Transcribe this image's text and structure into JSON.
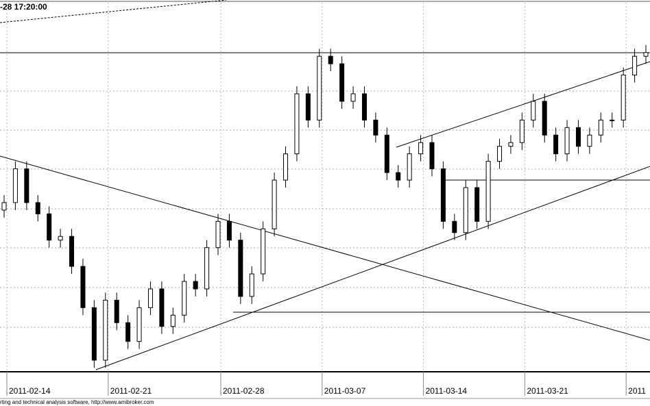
{
  "chart_data": {
    "type": "candlestick",
    "title": "-28 17:20:00",
    "footer": "rting and technical analysis software, http://www.amibroker.com",
    "open": [
      44,
      46,
      55,
      46,
      43,
      36,
      37,
      29,
      18,
      4,
      20,
      14,
      9,
      18,
      23,
      13,
      16,
      25,
      23,
      34,
      41,
      36,
      21,
      27,
      39,
      52,
      59,
      75,
      68,
      85,
      83,
      73,
      75,
      68,
      64,
      54,
      52,
      59,
      62,
      55,
      41,
      38,
      50,
      41,
      57,
      61,
      62,
      68,
      73,
      64,
      59,
      66,
      61,
      64,
      68,
      68,
      80,
      85
    ],
    "high": [
      48,
      57,
      57,
      48,
      45,
      39,
      39,
      31,
      20,
      22,
      22,
      16,
      20,
      25,
      25,
      18,
      27,
      27,
      36,
      43,
      43,
      38,
      29,
      41,
      54,
      61,
      77,
      77,
      87,
      87,
      85,
      77,
      77,
      70,
      66,
      56,
      61,
      64,
      64,
      57,
      43,
      52,
      52,
      59,
      63,
      64,
      70,
      75,
      75,
      66,
      68,
      68,
      66,
      70,
      70,
      82,
      87,
      88
    ],
    "low": [
      42,
      44,
      44,
      41,
      34,
      34,
      27,
      16,
      2,
      2,
      12,
      7,
      7,
      16,
      11,
      11,
      14,
      21,
      21,
      32,
      34,
      19,
      19,
      25,
      37,
      50,
      57,
      66,
      66,
      81,
      71,
      71,
      66,
      62,
      52,
      50,
      50,
      57,
      53,
      39,
      36,
      36,
      39,
      39,
      55,
      59,
      60,
      66,
      62,
      57,
      57,
      59,
      59,
      62,
      66,
      66,
      78,
      83
    ],
    "close": [
      46,
      55,
      46,
      43,
      36,
      37,
      29,
      18,
      4,
      20,
      14,
      9,
      18,
      23,
      13,
      16,
      25,
      23,
      34,
      41,
      36,
      21,
      27,
      39,
      52,
      59,
      75,
      68,
      85,
      83,
      73,
      75,
      68,
      64,
      54,
      52,
      59,
      62,
      55,
      41,
      38,
      50,
      41,
      57,
      61,
      62,
      68,
      73,
      64,
      59,
      66,
      61,
      64,
      68,
      68,
      80,
      85,
      86
    ],
    "up_color": "#ffffff",
    "down_color": "#000000",
    "ylim": [
      0,
      100
    ],
    "xticks": [
      {
        "value": 0,
        "label": "2011-02-14"
      },
      {
        "value": 9,
        "label": "2011-02-21"
      },
      {
        "value": 19,
        "label": "2011-02-28"
      },
      {
        "value": 28,
        "label": "2011-03-07"
      },
      {
        "value": 37,
        "label": "2011-03-14"
      },
      {
        "value": 46,
        "label": "2011-03-21"
      },
      {
        "value": 55,
        "label": "2011"
      }
    ],
    "grid": true
  }
}
